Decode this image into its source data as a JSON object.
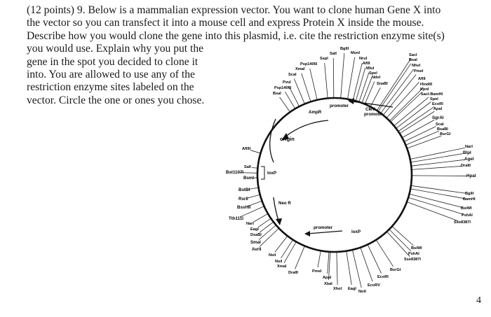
{
  "question": {
    "lines": [
      "(12 points) 9. Below is a mammalian expression vector. You want to clone human Gene X into",
      "the vector so you can transfect it into a mouse cell and express Protein X inside the mouse.",
      "Describe how you would clone the gene into this plasmid, i.e. cite the restriction enzyme site(s)",
      "you would use. Explain why you put the",
      "gene in the spot you decided to clone it",
      "into. You are allowed to use any of the",
      "restriction enzyme sites labeled on the",
      "vector. Circle the one or ones you chose."
    ]
  },
  "page_number": "4",
  "plasmid": {
    "features": {
      "ampr": "AmpR",
      "promoter_top": "promoter",
      "cmv_line1": "CMV",
      "cmv_line2": "promoter",
      "origin": "origin",
      "loxp_left": "loxP",
      "neo": "Neo R",
      "promoter_bottom": "promoter",
      "loxp_bottom": "loxP"
    },
    "sites": {
      "top_left": [
        "BglII",
        "SalI",
        "SspI",
        "Psp1406I",
        "XmaI",
        "ScaI",
        "PvuI",
        "Psp1406I",
        "BsaI"
      ],
      "top_center": [
        "MunI",
        "NruI",
        "AflII",
        "MluI",
        "SpeI",
        "NdeI",
        "SnaBI"
      ],
      "top_right": [
        "SacI",
        "BsaI",
        "NheI",
        "PmeI",
        "AflII",
        "HindIII",
        "KpnI",
        "SacI-BamHI",
        "SpeI",
        "EcoRI",
        "ApaI",
        "SgrAI",
        "ScaI",
        "BsaBI",
        "BsrGI"
      ],
      "right": [
        "NarI",
        "BlpI",
        "AgeI",
        "DraIII",
        "HpaI",
        "BglII",
        "BamHI",
        "BsiWI",
        "PshAI",
        "Sse8387I"
      ],
      "left": [
        "AflIII",
        "SalI",
        "Bst1107I",
        "BsmI",
        "BstBI",
        "RsrII",
        "BssHII",
        "Tth111I",
        "NarI",
        "EagI",
        "DsaBI",
        "SmaI",
        "AvrII"
      ],
      "bottom_left": [
        "NsiI",
        "NsiI",
        "XmaI",
        "DraIII",
        "PmeI",
        "ApaI",
        "XbaI",
        "XhoI",
        "EagI",
        "NotI",
        "EcoRV",
        "EcoRI"
      ],
      "bottom_right": [
        "BsiWI",
        "PshAI",
        "Sse8387I",
        "BsrGI"
      ]
    }
  }
}
